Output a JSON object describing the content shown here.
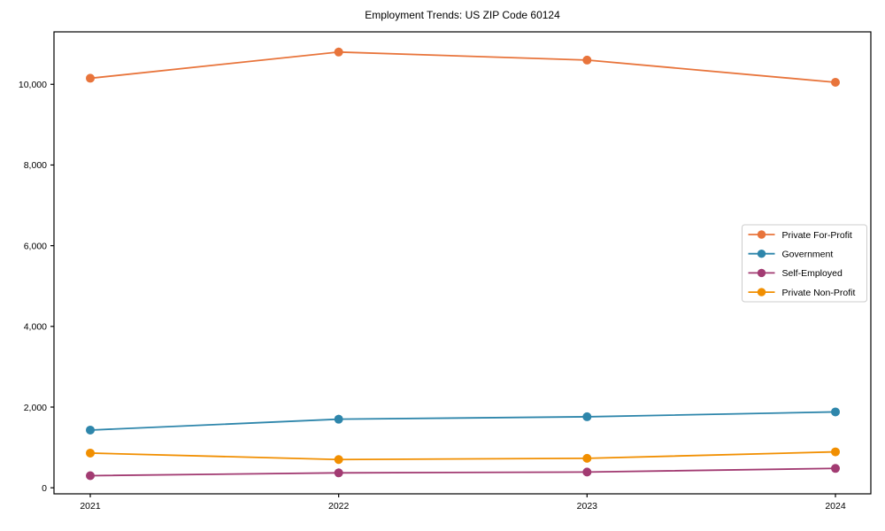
{
  "chart_data": {
    "type": "line",
    "title": "Employment Trends: US ZIP Code 60124",
    "x": [
      "2021",
      "2022",
      "2023",
      "2024"
    ],
    "series": [
      {
        "name": "Private For-Profit",
        "color": "#E8743B",
        "values": [
          10150,
          10800,
          10600,
          10050
        ]
      },
      {
        "name": "Government",
        "color": "#2E86AB",
        "values": [
          1430,
          1700,
          1760,
          1880
        ]
      },
      {
        "name": "Self-Employed",
        "color": "#A23B72",
        "values": [
          300,
          370,
          390,
          480
        ]
      },
      {
        "name": "Private Non-Profit",
        "color": "#F18F01",
        "values": [
          860,
          700,
          730,
          890
        ]
      }
    ],
    "yticks": [
      0,
      2000,
      4000,
      6000,
      8000,
      10000
    ],
    "ytick_labels": [
      "0",
      "2,000",
      "4,000",
      "6,000",
      "8,000",
      "10,000"
    ],
    "ylim": [
      -150,
      11300
    ],
    "grid": false,
    "legend_position": "center-right",
    "marker": "circle",
    "axis_color": "#000000",
    "legend_border_color": "#cccccc",
    "legend_background": "#ffffff"
  }
}
